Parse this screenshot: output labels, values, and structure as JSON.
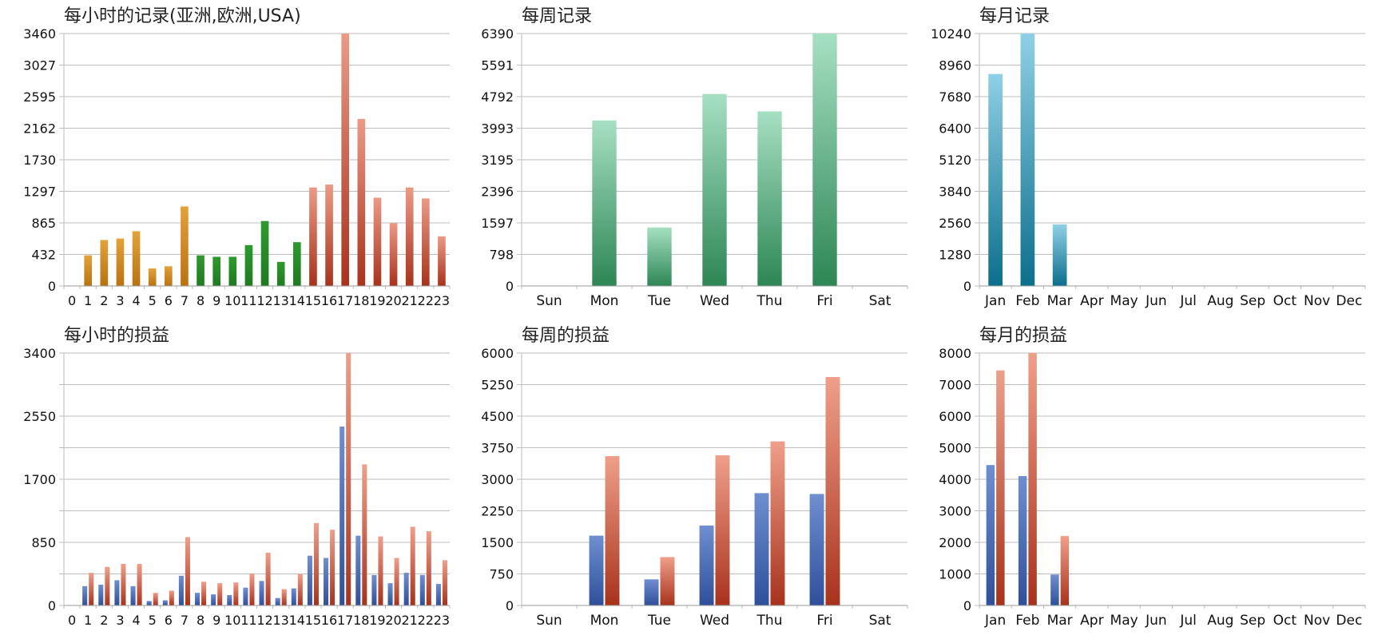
{
  "colors": {
    "asia": "#b8730f",
    "europe": "#1f7a1f",
    "usa": "#a8321c",
    "usa_top": "#eb9a86",
    "weekly_records": "#2d8654",
    "weekly_records_top": "#a6e0c3",
    "monthly_records": "#0b6f8c",
    "monthly_records_top": "#8fd0e6",
    "series_blue": "#2f4f9a",
    "series_blue_top": "#6f8fd0",
    "series_red": "#a8321c",
    "series_red_top": "#ef9f8a",
    "grid": "#bdbdbd"
  },
  "chart_data": [
    {
      "id": "hourly-records",
      "type": "bar",
      "title": "每小时的记录(亚洲,欧洲,USA)",
      "categories": [
        "0",
        "1",
        "2",
        "3",
        "4",
        "5",
        "6",
        "7",
        "8",
        "9",
        "10",
        "11",
        "12",
        "13",
        "14",
        "15",
        "16",
        "17",
        "18",
        "19",
        "20",
        "21",
        "22",
        "23"
      ],
      "yticks": [
        "0",
        "432",
        "865",
        "1297",
        "1730",
        "2162",
        "2595",
        "3027",
        "3460"
      ],
      "ylim": [
        0,
        3460
      ],
      "series": [
        {
          "values": [
            0,
            420,
            630,
            650,
            750,
            240,
            270,
            1090,
            420,
            400,
            400,
            560,
            890,
            330,
            600,
            1350,
            1390,
            3460,
            2290,
            1210,
            860,
            1350,
            1200,
            680
          ]
        }
      ],
      "bar_regions": [
        "asia",
        "asia",
        "asia",
        "asia",
        "asia",
        "asia",
        "asia",
        "asia",
        "europe",
        "europe",
        "europe",
        "europe",
        "europe",
        "europe",
        "europe",
        "usa",
        "usa",
        "usa",
        "usa",
        "usa",
        "usa",
        "usa",
        "usa",
        "usa"
      ]
    },
    {
      "id": "weekly-records",
      "type": "bar",
      "title": "每周记录",
      "categories": [
        "Sun",
        "Mon",
        "Tue",
        "Wed",
        "Thu",
        "Fri",
        "Sat"
      ],
      "yticks": [
        "0",
        "798",
        "1597",
        "2396",
        "3195",
        "3993",
        "4792",
        "5591",
        "6390"
      ],
      "ylim": [
        0,
        6390
      ],
      "series": [
        {
          "values": [
            0,
            4190,
            1480,
            4860,
            4420,
            6390,
            0
          ]
        }
      ]
    },
    {
      "id": "monthly-records",
      "type": "bar",
      "title": "每月记录",
      "categories": [
        "Jan",
        "Feb",
        "Mar",
        "Apr",
        "May",
        "Jun",
        "Jul",
        "Aug",
        "Sep",
        "Oct",
        "Nov",
        "Dec"
      ],
      "yticks": [
        "0",
        "1280",
        "2560",
        "3840",
        "5120",
        "6400",
        "7680",
        "8960",
        "10240"
      ],
      "ylim": [
        0,
        10240
      ],
      "series": [
        {
          "values": [
            8600,
            10240,
            2500,
            0,
            0,
            0,
            0,
            0,
            0,
            0,
            0,
            0
          ]
        }
      ]
    },
    {
      "id": "hourly-pnl",
      "type": "bar",
      "title": "每小时的损益",
      "categories": [
        "0",
        "1",
        "2",
        "3",
        "4",
        "5",
        "6",
        "7",
        "8",
        "9",
        "10",
        "11",
        "12",
        "13",
        "14",
        "15",
        "16",
        "17",
        "18",
        "19",
        "20",
        "21",
        "22",
        "23"
      ],
      "yticks": [
        "0",
        "",
        "850",
        "",
        "1700",
        "",
        "2550",
        "",
        "3400"
      ],
      "ylim": [
        0,
        3400
      ],
      "series": [
        {
          "values": [
            0,
            260,
            280,
            340,
            260,
            60,
            70,
            400,
            170,
            150,
            140,
            240,
            330,
            100,
            230,
            670,
            640,
            2410,
            940,
            410,
            300,
            440,
            410,
            290
          ]
        },
        {
          "values": [
            0,
            440,
            520,
            560,
            560,
            170,
            200,
            920,
            320,
            300,
            310,
            430,
            710,
            220,
            420,
            1110,
            1020,
            3400,
            1900,
            930,
            640,
            1060,
            1000,
            610
          ]
        }
      ]
    },
    {
      "id": "weekly-pnl",
      "type": "bar",
      "title": "每周的损益",
      "categories": [
        "Sun",
        "Mon",
        "Tue",
        "Wed",
        "Thu",
        "Fri",
        "Sat"
      ],
      "yticks": [
        "0",
        "750",
        "1500",
        "2250",
        "3000",
        "3750",
        "4500",
        "5250",
        "6000"
      ],
      "ylim": [
        0,
        6000
      ],
      "series": [
        {
          "values": [
            0,
            1660,
            620,
            1900,
            2670,
            2650,
            0
          ]
        },
        {
          "values": [
            0,
            3550,
            1150,
            3570,
            3900,
            5430,
            0
          ]
        }
      ]
    },
    {
      "id": "monthly-pnl",
      "type": "bar",
      "title": "每月的损益",
      "categories": [
        "Jan",
        "Feb",
        "Mar",
        "Apr",
        "May",
        "Jun",
        "Jul",
        "Aug",
        "Sep",
        "Oct",
        "Nov",
        "Dec"
      ],
      "yticks": [
        "0",
        "1000",
        "2000",
        "3000",
        "4000",
        "5000",
        "6000",
        "7000",
        "8000"
      ],
      "ylim": [
        0,
        8000
      ],
      "series": [
        {
          "values": [
            4450,
            4100,
            980,
            0,
            0,
            0,
            0,
            0,
            0,
            0,
            0,
            0
          ]
        },
        {
          "values": [
            7450,
            8000,
            2200,
            0,
            0,
            0,
            0,
            0,
            0,
            0,
            0,
            0
          ]
        }
      ]
    }
  ]
}
